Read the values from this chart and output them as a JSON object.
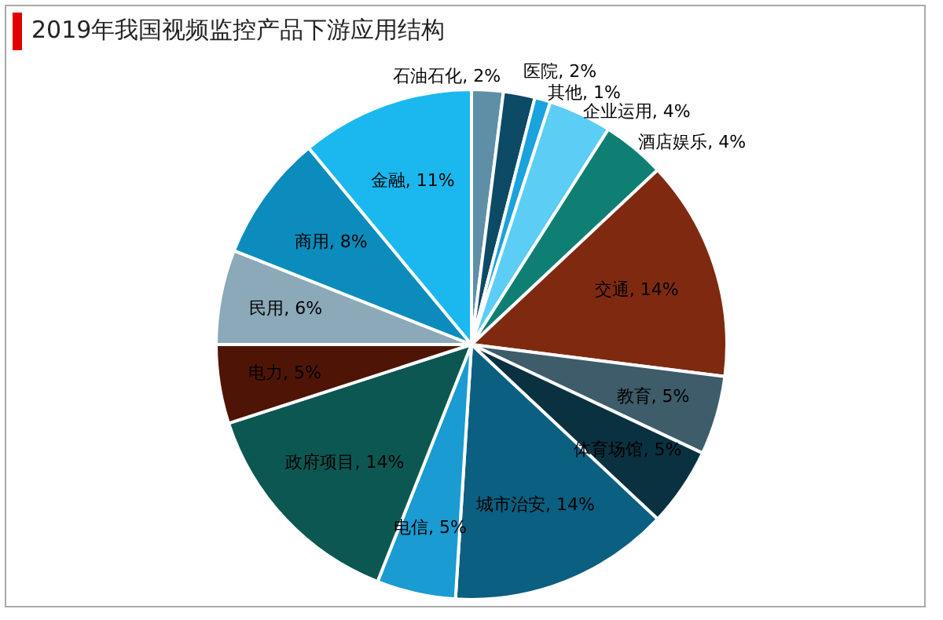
{
  "chart_data": {
    "type": "pie",
    "title": "2019年我国视频监控产品下游应用结构",
    "categories": [
      "石油石化",
      "医院",
      "其他",
      "企业运用",
      "酒店娱乐",
      "交通",
      "教育",
      "体育场馆",
      "城市治安",
      "电信",
      "政府项目",
      "电力",
      "民用",
      "商用",
      "金融"
    ],
    "values": [
      2,
      2,
      1,
      4,
      4,
      14,
      5,
      5,
      14,
      5,
      14,
      5,
      6,
      8,
      11
    ],
    "colors": [
      "#5f8fa6",
      "#0d4a66",
      "#1aa3dc",
      "#5ccdf5",
      "#0f7f74",
      "#7f2a10",
      "#3e5c6a",
      "#0a3140",
      "#0b5f80",
      "#1a9bd1",
      "#0d5752",
      "#4e1506",
      "#8ba9b8",
      "#0b8cbc",
      "#1bb8ef"
    ],
    "value_labels": [
      ", 2%",
      ", 2%",
      ", 1%",
      ", 4%",
      ", 4%",
      ", 14%",
      ", 5%",
      ", 5%",
      ", 14%",
      ", 5%",
      ", 14%",
      ", 5%",
      ", 6%",
      ", 8%",
      ", 11%"
    ],
    "legend": false
  }
}
